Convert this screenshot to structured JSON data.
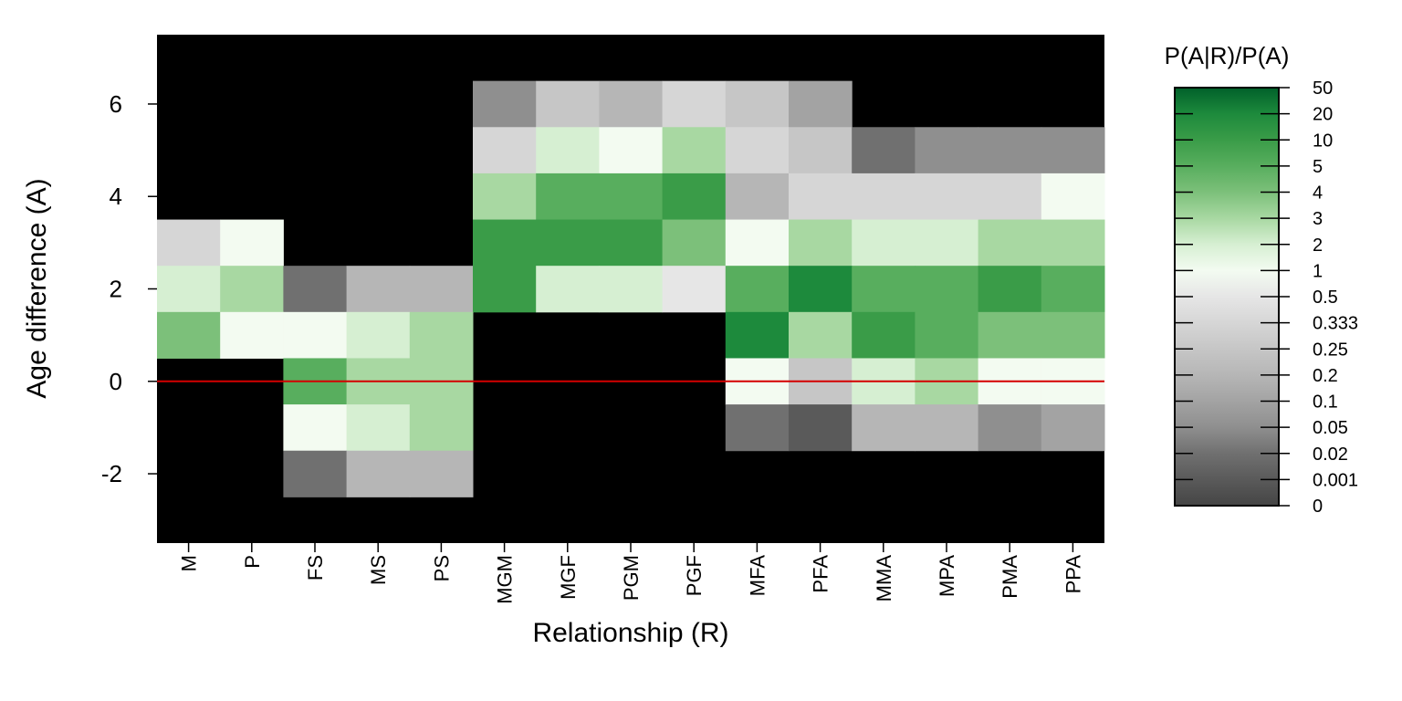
{
  "chart_data": {
    "type": "heatmap",
    "title": "",
    "xlabel": "Relationship (R)",
    "ylabel": "Age difference (A)",
    "x_categories": [
      "M",
      "P",
      "FS",
      "MS",
      "PS",
      "MGM",
      "MGF",
      "PGM",
      "PGF",
      "MFA",
      "PFA",
      "MMA",
      "MPA",
      "PMA",
      "PPA"
    ],
    "y_bins": [
      6,
      5,
      4,
      3,
      2,
      1,
      0,
      -1,
      -2
    ],
    "y_ticks": [
      -2,
      0,
      2,
      4,
      6
    ],
    "ylim": [
      -3.5,
      7.5
    ],
    "reference_line": {
      "y": 0,
      "color": "#d40000"
    },
    "background_color": "#000000",
    "colorbar": {
      "title": "P(A|R)/P(A)",
      "labels": [
        "50",
        "20",
        "10",
        "5",
        "4",
        "3",
        "2",
        "1",
        "0.5",
        "0.333",
        "0.25",
        "0.2",
        "0.1",
        "0.05",
        "0.02",
        "0.001",
        "0"
      ]
    },
    "cells_note_level_index": "values are indices into colorbar.labels from top (0 = 50) to bottom (16 = 0); -1 = no data",
    "levels": [
      [
        -1,
        -1,
        -1,
        -1,
        -1,
        13,
        10,
        11,
        9,
        10,
        12,
        -1,
        -1,
        -1,
        -1
      ],
      [
        -1,
        -1,
        -1,
        -1,
        -1,
        9,
        6,
        7,
        5,
        9,
        10,
        14,
        13,
        13,
        13
      ],
      [
        -1,
        -1,
        -1,
        -1,
        -1,
        5,
        3,
        3,
        2,
        11,
        9,
        9,
        9,
        9,
        7
      ],
      [
        9,
        7,
        -1,
        -1,
        -1,
        2,
        2,
        2,
        4,
        7,
        5,
        6,
        6,
        5,
        5
      ],
      [
        6,
        5,
        14,
        11,
        11,
        2,
        6,
        6,
        8,
        3,
        1,
        3,
        3,
        2,
        3
      ],
      [
        4,
        7,
        7,
        6,
        5,
        -1,
        -1,
        -1,
        -1,
        1,
        5,
        2,
        3,
        4,
        4
      ],
      [
        -1,
        -1,
        3,
        5,
        5,
        -1,
        -1,
        -1,
        -1,
        7,
        10,
        6,
        5,
        7,
        7
      ],
      [
        -1,
        -1,
        7,
        6,
        5,
        -1,
        -1,
        -1,
        -1,
        14,
        15,
        11,
        11,
        13,
        12
      ],
      [
        -1,
        -1,
        14,
        11,
        11,
        -1,
        -1,
        -1,
        -1,
        -1,
        -1,
        -1,
        -1,
        -1,
        -1
      ]
    ]
  }
}
